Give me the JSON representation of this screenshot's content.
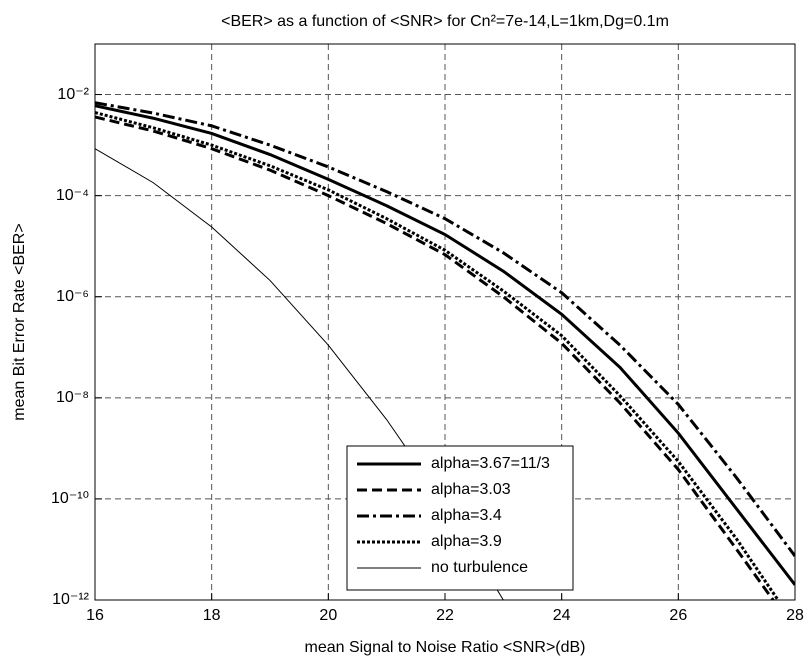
{
  "chart_data": {
    "type": "line",
    "title": "<BER> as a function of <SNR> for Cn²=7e-14,L=1km,Dg=0.1m",
    "x_label": "mean Signal to Noise Ratio <SNR>(dB)",
    "y_label": "mean Bit Error Rate <BER>",
    "x": [
      16,
      17,
      18,
      19,
      20,
      21,
      22,
      23,
      24,
      25,
      26,
      27,
      28
    ],
    "series": [
      {
        "name": "alpha=3.67=11/3",
        "color": "#000000",
        "style": "solid",
        "width": 3,
        "values": [
          0.006,
          0.0034,
          0.0017,
          0.00065,
          0.00021,
          6.3e-05,
          1.7e-05,
          3.2e-06,
          4.5e-07,
          4e-08,
          2e-09,
          6.3e-11,
          2e-12
        ]
      },
      {
        "name": "alpha=3.03",
        "color": "#000000",
        "style": "dashed",
        "width": 3,
        "values": [
          0.0036,
          0.0019,
          0.00085,
          0.00032,
          0.0001,
          2.8e-05,
          6.8e-06,
          1e-06,
          1.2e-07,
          7.9e-09,
          3.8e-10,
          1e-11,
          2.5e-13
        ]
      },
      {
        "name": "alpha=3.4",
        "color": "#000000",
        "style": "dashdot",
        "width": 3,
        "values": [
          0.0069,
          0.0043,
          0.0024,
          0.001,
          0.00037,
          0.00012,
          3.5e-05,
          7.4e-06,
          1.2e-06,
          1.1e-07,
          7.4e-09,
          2.6e-10,
          7.4e-12
        ]
      },
      {
        "name": "alpha=3.9",
        "color": "#000000",
        "style": "dotted",
        "width": 3,
        "values": [
          0.0044,
          0.0022,
          0.001,
          0.00039,
          0.00013,
          3.5e-05,
          8.3e-06,
          1.3e-06,
          1.7e-07,
          1.1e-08,
          5.5e-10,
          1.6e-11,
          3.2e-13
        ]
      },
      {
        "name": "no turbulence",
        "color": "#000000",
        "style": "solid",
        "width": 1,
        "values": [
          0.00085,
          0.00018,
          2.4e-05,
          2.1e-06,
          1.1e-07,
          3.7e-09,
          7.9e-11,
          1e-12,
          null,
          null,
          null,
          null,
          null
        ]
      }
    ],
    "xlim": [
      16,
      28
    ],
    "xticks": [
      16,
      18,
      20,
      22,
      24,
      26,
      28
    ],
    "ylim": [
      1e-12,
      0.1
    ],
    "log_y": true,
    "yticks": [
      {
        "value": 1e-12,
        "label": "10⁻¹²"
      },
      {
        "value": 1e-10,
        "label": "10⁻¹⁰"
      },
      {
        "value": 1e-08,
        "label": "10⁻⁸"
      },
      {
        "value": 1e-06,
        "label": "10⁻⁶"
      },
      {
        "value": 0.0001,
        "label": "10⁻⁴"
      },
      {
        "value": 0.01,
        "label": "10⁻²"
      }
    ],
    "grid": true,
    "legend": "lower center"
  }
}
